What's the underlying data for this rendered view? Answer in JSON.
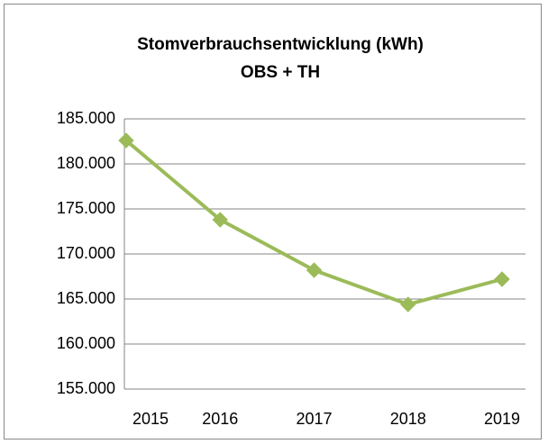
{
  "chart_data": {
    "type": "line",
    "title": "Stomverbrauchsentwicklung (kWh)",
    "subtitle": "OBS + TH",
    "categories": [
      "2015",
      "2016",
      "2017",
      "2018",
      "2019"
    ],
    "values": [
      182600,
      173800,
      168200,
      164400,
      167200
    ],
    "color": "#9bbb59",
    "ylim": [
      155000,
      185000
    ],
    "yticks": [
      {
        "value": 155000,
        "label": "155.000"
      },
      {
        "value": 160000,
        "label": "160.000"
      },
      {
        "value": 165000,
        "label": "165.000"
      },
      {
        "value": 170000,
        "label": "170.000"
      },
      {
        "value": 175000,
        "label": "175.000"
      },
      {
        "value": 180000,
        "label": "180.000"
      },
      {
        "value": 185000,
        "label": "185.000"
      }
    ],
    "grid": true
  }
}
